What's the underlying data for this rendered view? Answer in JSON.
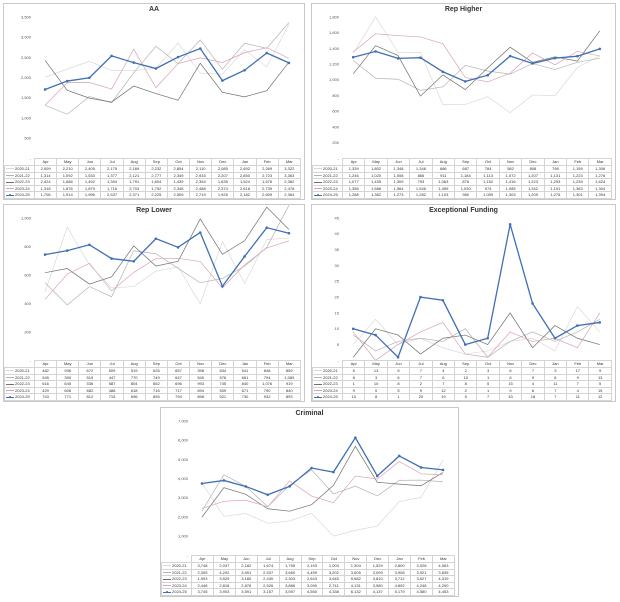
{
  "chart_data": [
    {
      "type": "line",
      "title": "AA",
      "categories": [
        "Apr",
        "May",
        "Jun",
        "Jul",
        "Aug",
        "Sep",
        "Oct",
        "Nov",
        "Dec",
        "Jan",
        "Feb",
        "Mar"
      ],
      "ylim": [
        0,
        3500
      ],
      "yticks": [
        "-",
        "500",
        "1,000",
        "1,500",
        "2,000",
        "2,500",
        "3,000",
        "3,500"
      ],
      "ytick_values": [
        0,
        500,
        1000,
        1500,
        2000,
        2500,
        3000,
        3500
      ],
      "grid": false,
      "legend": "table-below",
      "series": [
        {
          "name": "2020-21",
          "color": "#d9d9d9",
          "values": [
            2009,
            2210,
            2405,
            2175,
            2169,
            2232,
            2854,
            2110,
            2085,
            2692,
            2269,
            3322
          ],
          "labels": [
            "2,009",
            "2,210",
            "2,405",
            "2,175",
            "2,169",
            "2,232",
            "2,854",
            "2,110",
            "2,085",
            "2,692",
            "2,269",
            "3,322"
          ]
        },
        {
          "name": "2021-22",
          "color": "#b3b3b3",
          "values": [
            1314,
            1092,
            1533,
            1377,
            2121,
            2777,
            2349,
            2933,
            2207,
            2850,
            2723,
            3363
          ],
          "labels": [
            "1,314",
            "1,092",
            "1,533",
            "1,377",
            "2,121",
            "2,777",
            "2,349",
            "2,933",
            "2,207",
            "2,850",
            "2,723",
            "3,363"
          ]
        },
        {
          "name": "2022-23",
          "color": "#6f6f6f",
          "values": [
            2424,
            1686,
            1492,
            1394,
            1791,
            1604,
            1439,
            2354,
            1635,
            1524,
            1676,
            2382
          ],
          "labels": [
            "2,424",
            "1,686",
            "1,492",
            "1,394",
            "1,791",
            "1,604",
            "1,439",
            "2,354",
            "1,635",
            "1,524",
            "1,676",
            "2,382"
          ]
        },
        {
          "name": "2023-24",
          "color": "#d9a2b3",
          "values": [
            1318,
            1876,
            1879,
            1716,
            2703,
            1752,
            2348,
            2488,
            2374,
            2618,
            2739,
            2478
          ],
          "labels": [
            "1,318",
            "1,876",
            "1,879",
            "1,716",
            "2,703",
            "1,752",
            "2,348",
            "2,488",
            "2,374",
            "2,618",
            "2,739",
            "2,478"
          ]
        },
        {
          "name": "2024-25",
          "color": "#3f6fb5",
          "highlight": true,
          "values": [
            1706,
            1914,
            1996,
            2537,
            2371,
            2225,
            2509,
            2719,
            1925,
            2182,
            2609,
            2364
          ],
          "labels": [
            "1,706",
            "1,914",
            "1,996",
            "2,537",
            "2,371",
            "2,225",
            "2,509",
            "2,719",
            "1,925",
            "2,182",
            "2,609",
            "2,364"
          ]
        }
      ]
    },
    {
      "type": "line",
      "title": "Rep Higher",
      "categories": [
        "Apr",
        "May",
        "Jun",
        "Jul",
        "Aug",
        "Sep",
        "Oct",
        "Nov",
        "Dec",
        "Jan",
        "Feb",
        "Mar"
      ],
      "ylim": [
        0,
        1800
      ],
      "yticks": [
        "-",
        "200",
        "400",
        "600",
        "800",
        "1,000",
        "1,200",
        "1,400",
        "1,600",
        "1,800"
      ],
      "ytick_values": [
        0,
        200,
        400,
        600,
        800,
        1000,
        1200,
        1400,
        1600,
        1800
      ],
      "grid": false,
      "legend": "table-below",
      "series": [
        {
          "name": "2020-21",
          "color": "#d9d9d9",
          "values": [
            1339,
            1802,
            1348,
            1346,
            686,
            687,
            784,
            582,
            808,
            798,
            1159,
            1306
          ],
          "labels": [
            "1,339",
            "1,802",
            "1,348",
            "1,346",
            "686",
            "687",
            "784",
            "582",
            "808",
            "798",
            "1,159",
            "1,306"
          ]
        },
        {
          "name": "2021-22",
          "color": "#b3b3b3",
          "values": [
            1246,
            1020,
            1008,
            866,
            911,
            1184,
            1113,
            1072,
            1207,
            1131,
            1223,
            1276
          ],
          "labels": [
            "1,246",
            "1,020",
            "1,008",
            "866",
            "911",
            "1,184",
            "1,113",
            "1,072",
            "1,207",
            "1,131",
            "1,223",
            "1,276"
          ]
        },
        {
          "name": "2022-23",
          "color": "#6f6f6f",
          "values": [
            1077,
            1435,
            1309,
            793,
            1063,
            876,
            1152,
            1416,
            1223,
            1293,
            1239,
            1624
          ],
          "labels": [
            "1,077",
            "1,435",
            "1,309",
            "793",
            "1,063",
            "876",
            "1,152",
            "1,416",
            "1,223",
            "1,293",
            "1,239",
            "1,624"
          ]
        },
        {
          "name": "2023-24",
          "color": "#d9a2b3",
          "values": [
            1356,
            1586,
            1564,
            1546,
            1459,
            1030,
            974,
            1085,
            1342,
            1191,
            1363,
            1304
          ],
          "labels": [
            "1,356",
            "1,586",
            "1,564",
            "1,546",
            "1,459",
            "1,030",
            "974",
            "1,085",
            "1,342",
            "1,191",
            "1,363",
            "1,304"
          ]
        },
        {
          "name": "2024-25",
          "color": "#3f6fb5",
          "highlight": true,
          "values": [
            1288,
            1362,
            1273,
            1282,
            1103,
            980,
            1059,
            1303,
            1209,
            1276,
            1301,
            1394
          ],
          "labels": [
            "1,288",
            "1,362",
            "1,273",
            "1,282",
            "1,103",
            "980",
            "1,059",
            "1,303",
            "1,209",
            "1,276",
            "1,301",
            "1,394"
          ]
        }
      ]
    },
    {
      "type": "line",
      "title": "Rep Lower",
      "categories": [
        "Apr",
        "May",
        "Jun",
        "Jul",
        "Aug",
        "Sep",
        "Oct",
        "Nov",
        "Dec",
        "Jan",
        "Feb",
        "Mar"
      ],
      "ylim": [
        0,
        1000
      ],
      "yticks": [
        "-",
        "200",
        "400",
        "600",
        "800",
        "1,000"
      ],
      "ytick_values": [
        0,
        200,
        400,
        600,
        800,
        1000
      ],
      "grid": false,
      "legend": "table-below",
      "series": [
        {
          "name": "2020-21",
          "color": "#d9d9d9",
          "values": [
            482,
            936,
            672,
            509,
            519,
            626,
            657,
            398,
            834,
            541,
            848,
            859
          ],
          "labels": [
            "482",
            "936",
            "672",
            "509",
            "519",
            "626",
            "657",
            "398",
            "834",
            "541",
            "848",
            "859"
          ]
        },
        {
          "name": "2021-22",
          "color": "#b3b3b3",
          "values": [
            545,
            390,
            519,
            447,
            770,
            749,
            647,
            545,
            576,
            661,
            794,
            1089
          ],
          "labels": [
            "545",
            "390",
            "519",
            "447",
            "770",
            "749",
            "647",
            "545",
            "576",
            "661",
            "794",
            "1,089"
          ]
        },
        {
          "name": "2022-23",
          "color": "#6f6f6f",
          "values": [
            616,
            645,
            536,
            587,
            804,
            662,
            696,
            993,
            745,
            840,
            1076,
            919
          ],
          "labels": [
            "616",
            "645",
            "536",
            "587",
            "804",
            "662",
            "696",
            "993",
            "745",
            "840",
            "1,076",
            "919"
          ]
        },
        {
          "name": "2023-24",
          "color": "#d9a2b3",
          "values": [
            429,
            606,
            682,
            488,
            618,
            716,
            717,
            694,
            509,
            671,
            790,
            840
          ],
          "labels": [
            "429",
            "606",
            "682",
            "488",
            "618",
            "716",
            "717",
            "694",
            "509",
            "671",
            "790",
            "840"
          ]
        },
        {
          "name": "2024-25",
          "color": "#3f6fb5",
          "highlight": true,
          "values": [
            743,
            771,
            812,
            715,
            696,
            855,
            794,
            898,
            521,
            730,
            932,
            893
          ],
          "labels": [
            "743",
            "771",
            "812",
            "715",
            "696",
            "855",
            "794",
            "898",
            "521",
            "730",
            "932",
            "893"
          ]
        }
      ]
    },
    {
      "type": "line",
      "title": "Exceptional Funding",
      "categories": [
        "Apr",
        "May",
        "Jun",
        "Jul",
        "Aug",
        "Sep",
        "Oct",
        "Nov",
        "Dec",
        "Jan",
        "Feb",
        "Mar"
      ],
      "ylim": [
        0,
        45
      ],
      "yticks": [
        "-",
        "5",
        "10",
        "15",
        "20",
        "25",
        "30",
        "35",
        "40",
        "45"
      ],
      "ytick_values": [
        0,
        5,
        10,
        15,
        20,
        25,
        30,
        35,
        40,
        45
      ],
      "grid": false,
      "legend": "table-below",
      "series": [
        {
          "name": "2020-21",
          "color": "#d9d9d9",
          "values": [
            5,
            13,
            5,
            7,
            4,
            2,
            3,
            6,
            7,
            3,
            17,
            9
          ],
          "labels": [
            "5",
            "13",
            "5",
            "7",
            "4",
            "2",
            "3",
            "6",
            "7",
            "3",
            "17",
            "9"
          ]
        },
        {
          "name": "2021-22",
          "color": "#b3b3b3",
          "values": [
            8,
            3,
            6,
            7,
            6,
            10,
            1,
            6,
            9,
            6,
            9,
            13
          ],
          "labels": [
            "8",
            "3",
            "6",
            "7",
            "6",
            "10",
            "1",
            "6",
            "9",
            "6",
            "9",
            "13"
          ]
        },
        {
          "name": "2022-23",
          "color": "#6f6f6f",
          "values": [
            1,
            10,
            8,
            2,
            7,
            8,
            5,
            15,
            4,
            11,
            7,
            5
          ],
          "labels": [
            "1",
            "10",
            "8",
            "2",
            "7",
            "8",
            "5",
            "15",
            "4",
            "11",
            "7",
            "5"
          ]
        },
        {
          "name": "2023-24",
          "color": "#d9a2b3",
          "values": [
            9,
            0,
            5,
            9,
            12,
            2,
            1,
            9,
            6,
            7,
            4,
            15
          ],
          "labels": [
            "9",
            "0",
            "5",
            "9",
            "12",
            "2",
            "1",
            "9",
            "6",
            "7",
            "4",
            "15"
          ]
        },
        {
          "name": "2024-25",
          "color": "#3f6fb5",
          "highlight": true,
          "values": [
            10,
            8,
            1,
            20,
            19,
            5,
            7,
            43,
            18,
            7,
            11,
            12
          ],
          "labels": [
            "10",
            "8",
            "1",
            "20",
            "19",
            "5",
            "7",
            "43",
            "18",
            "7",
            "11",
            "12"
          ]
        }
      ]
    },
    {
      "type": "line",
      "title": "Criminal",
      "categories": [
        "Apr",
        "May",
        "Jun",
        "Jul",
        "Aug",
        "Sep",
        "Oct",
        "Nov",
        "Dec",
        "Jan",
        "Feb",
        "Mar"
      ],
      "ylim": [
        0,
        7000
      ],
      "yticks": [
        "-",
        "1,000",
        "2,000",
        "3,000",
        "4,000",
        "5,000",
        "6,000",
        "7,000"
      ],
      "ytick_values": [
        0,
        1000,
        2000,
        3000,
        4000,
        5000,
        6000,
        7000
      ],
      "grid": false,
      "legend": "table-below",
      "series": [
        {
          "name": "2020-21",
          "color": "#d9d9d9",
          "values": [
            3748,
            2037,
            2182,
            1674,
            1795,
            2193,
            1003,
            1304,
            1529,
            2800,
            3028,
            4963
          ],
          "labels": [
            "3,748",
            "2,037",
            "2,182",
            "1,674",
            "1,795",
            "2,193",
            "1,003",
            "1,304",
            "1,529",
            "2,800",
            "3,028",
            "4,963"
          ]
        },
        {
          "name": "2021-22",
          "color": "#b3b3b3",
          "values": [
            2305,
            4202,
            3591,
            2537,
            3660,
            4459,
            3202,
            3605,
            3099,
            3908,
            3921,
            3835
          ],
          "labels": [
            "2,305",
            "4,202",
            "3,591",
            "2,537",
            "3,660",
            "4,459",
            "3,202",
            "3,605",
            "3,099",
            "3,908",
            "3,921",
            "3,835"
          ]
        },
        {
          "name": "2022-23",
          "color": "#6f6f6f",
          "values": [
            1993,
            3529,
            3180,
            2430,
            2303,
            2643,
            3645,
            5682,
            3810,
            3712,
            3627,
            4319
          ],
          "labels": [
            "1,993",
            "3,529",
            "3,180",
            "2,430",
            "2,303",
            "2,643",
            "3,645",
            "5,682",
            "3,810",
            "3,712",
            "3,627",
            "4,319"
          ]
        },
        {
          "name": "2023-24",
          "color": "#d9a2b3",
          "values": [
            2448,
            2818,
            2878,
            2526,
            3886,
            3090,
            2741,
            4131,
            3980,
            4892,
            4248,
            4200
          ],
          "labels": [
            "2,448",
            "2,818",
            "2,878",
            "2,526",
            "3,886",
            "3,090",
            "2,741",
            "4,131",
            "3,980",
            "4,892",
            "4,248",
            "4,200"
          ]
        },
        {
          "name": "2024-25",
          "color": "#3f6fb5",
          "highlight": true,
          "values": [
            3745,
            3903,
            3591,
            3157,
            3597,
            4550,
            4338,
            6132,
            4137,
            5179,
            4580,
            4453
          ],
          "labels": [
            "3,745",
            "3,903",
            "3,591",
            "3,157",
            "3,597",
            "4,550",
            "4,338",
            "6,132",
            "4,137",
            "5,179",
            "4,580",
            "4,453"
          ]
        }
      ]
    }
  ]
}
